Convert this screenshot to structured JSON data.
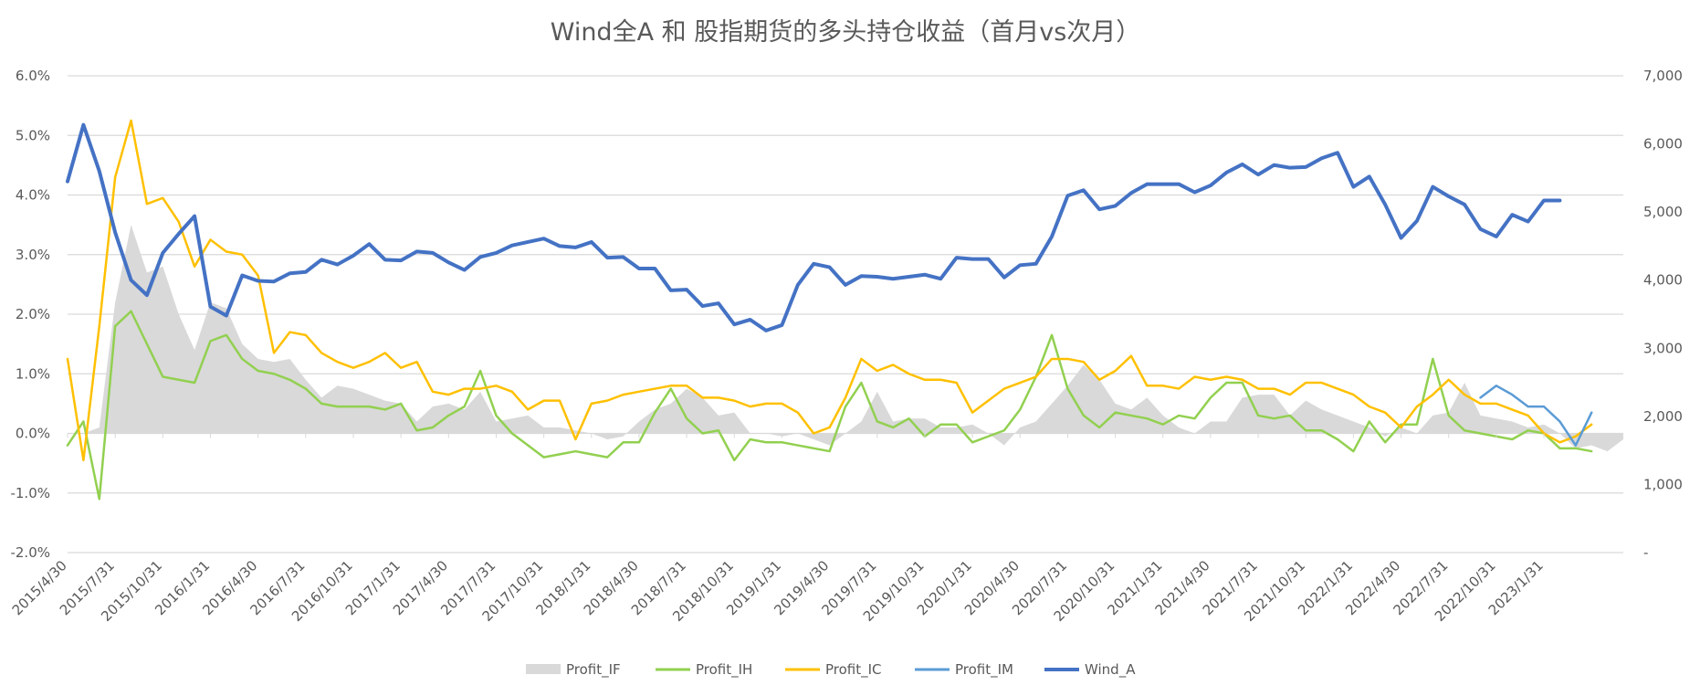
{
  "chart_data": {
    "type": "line",
    "title": "Wind全A 和 股指期货的多头持仓收益（首月vs次月）",
    "left_axis": {
      "ylim": [
        -0.02,
        0.06
      ],
      "ticks": [
        "-2.0%",
        "-1.0%",
        "0.0%",
        "1.0%",
        "2.0%",
        "3.0%",
        "4.0%",
        "5.0%",
        "6.0%"
      ]
    },
    "right_axis": {
      "ylim": [
        0,
        7000
      ],
      "ticks": [
        "-",
        "1,000",
        "2,000",
        "3,000",
        "4,000",
        "5,000",
        "6,000",
        "7,000"
      ]
    },
    "x_tick_labels": [
      "2015/4/30",
      "2015/7/31",
      "2015/10/31",
      "2016/1/31",
      "2016/4/30",
      "2016/7/31",
      "2016/10/31",
      "2017/1/31",
      "2017/4/30",
      "2017/7/31",
      "2017/10/31",
      "2018/1/31",
      "2018/4/30",
      "2018/7/31",
      "2018/10/31",
      "2019/1/31",
      "2019/4/30",
      "2019/7/31",
      "2019/10/31",
      "2020/1/31",
      "2020/4/30",
      "2020/7/31",
      "2020/10/31",
      "2021/1/31",
      "2021/4/30",
      "2021/7/31",
      "2021/10/31",
      "2022/1/31",
      "2022/4/30",
      "2022/7/31",
      "2022/10/31",
      "2023/1/31"
    ],
    "grid": true,
    "legend_position": "bottom",
    "series": [
      {
        "name": "Profit_IF",
        "type": "area",
        "axis": "left",
        "color": "#d9d9d9",
        "values": [
          0.0,
          0.0,
          0.001,
          0.022,
          0.035,
          0.027,
          0.028,
          0.02,
          0.014,
          0.022,
          0.021,
          0.015,
          0.0125,
          0.012,
          0.0125,
          0.009,
          0.006,
          0.008,
          0.0075,
          0.0065,
          0.0055,
          0.005,
          0.002,
          0.0045,
          0.005,
          0.004,
          0.007,
          0.002,
          0.0025,
          0.003,
          0.001,
          0.001,
          0.0005,
          0.0,
          -0.001,
          -0.0005,
          0.002,
          0.004,
          0.005,
          0.0075,
          0.006,
          0.003,
          0.0035,
          0.0,
          0.0,
          -0.0005,
          0.0,
          -0.001,
          -0.002,
          0.0,
          0.002,
          0.007,
          0.002,
          0.0025,
          0.0025,
          0.001,
          0.001,
          0.0015,
          0.0,
          -0.002,
          0.001,
          0.002,
          0.005,
          0.008,
          0.0115,
          0.009,
          0.005,
          0.004,
          0.006,
          0.003,
          0.001,
          0.0,
          0.002,
          0.002,
          0.006,
          0.0065,
          0.0065,
          0.003,
          0.0055,
          0.004,
          0.003,
          0.002,
          0.001,
          -0.0005,
          0.001,
          0.0,
          0.003,
          0.0035,
          0.0085,
          0.003,
          0.0025,
          0.002,
          0.001,
          0.0015,
          0.0,
          -0.0025,
          -0.002,
          -0.003,
          -0.001
        ]
      },
      {
        "name": "Profit_IH",
        "type": "line",
        "axis": "left",
        "color": "#92d050",
        "values": [
          -0.002,
          0.002,
          -0.011,
          0.018,
          0.0205,
          0.015,
          0.0095,
          0.009,
          0.0085,
          0.0155,
          0.0165,
          0.0125,
          0.0105,
          0.01,
          0.009,
          0.0075,
          0.005,
          0.0045,
          0.0045,
          0.0045,
          0.004,
          0.005,
          0.0005,
          0.001,
          0.003,
          0.0045,
          0.0105,
          0.003,
          0.0,
          -0.002,
          -0.004,
          -0.0035,
          -0.003,
          -0.0035,
          -0.004,
          -0.0015,
          -0.0015,
          0.0035,
          0.0075,
          0.0025,
          0.0,
          0.0005,
          -0.0045,
          -0.001,
          -0.0015,
          -0.0015,
          -0.002,
          -0.0025,
          -0.003,
          0.0045,
          0.0085,
          0.002,
          0.001,
          0.0025,
          -0.0005,
          0.0015,
          0.0015,
          -0.0015,
          -0.0005,
          0.0005,
          0.004,
          0.0095,
          0.0165,
          0.0075,
          0.003,
          0.001,
          0.0035,
          0.003,
          0.0025,
          0.0015,
          0.003,
          0.0025,
          0.006,
          0.0085,
          0.0085,
          0.003,
          0.0025,
          0.003,
          0.0005,
          0.0005,
          -0.001,
          -0.003,
          0.002,
          -0.0015,
          0.0015,
          0.0015,
          0.0125,
          0.003,
          0.0005,
          0.0,
          -0.0005,
          -0.001,
          0.0005,
          0.0,
          -0.0025,
          -0.0025,
          -0.003
        ]
      },
      {
        "name": "Profit_IC",
        "type": "line",
        "axis": "left",
        "color": "#ffc000",
        "values": [
          0.0125,
          -0.0045,
          0.018,
          0.043,
          0.0525,
          0.0385,
          0.0395,
          0.0355,
          0.028,
          0.0325,
          0.0305,
          0.03,
          0.0265,
          0.0135,
          0.017,
          0.0165,
          0.0135,
          0.012,
          0.011,
          0.012,
          0.0135,
          0.011,
          0.012,
          0.007,
          0.0065,
          0.0075,
          0.0075,
          0.008,
          0.007,
          0.004,
          0.0055,
          0.0055,
          -0.001,
          0.005,
          0.0055,
          0.0065,
          0.007,
          0.0075,
          0.008,
          0.008,
          0.006,
          0.006,
          0.0055,
          0.0045,
          0.005,
          0.005,
          0.0035,
          0.0,
          0.001,
          0.006,
          0.0125,
          0.0105,
          0.0115,
          0.01,
          0.009,
          0.009,
          0.0085,
          0.0035,
          0.0055,
          0.0075,
          0.0085,
          0.0095,
          0.0125,
          0.0125,
          0.012,
          0.009,
          0.0105,
          0.013,
          0.008,
          0.008,
          0.0075,
          0.0095,
          0.009,
          0.0095,
          0.009,
          0.0075,
          0.0075,
          0.0065,
          0.0085,
          0.0085,
          0.0075,
          0.0065,
          0.0045,
          0.0035,
          0.001,
          0.0045,
          0.0065,
          0.009,
          0.0065,
          0.005,
          0.005,
          0.004,
          0.003,
          0.0,
          -0.0015,
          -0.0005,
          0.0015
        ]
      },
      {
        "name": "Profit_IM",
        "type": "line",
        "axis": "left",
        "color": "#5b9bd5",
        "values": [
          null,
          null,
          null,
          null,
          null,
          null,
          null,
          null,
          null,
          null,
          null,
          null,
          null,
          null,
          null,
          null,
          null,
          null,
          null,
          null,
          null,
          null,
          null,
          null,
          null,
          null,
          null,
          null,
          null,
          null,
          null,
          null,
          null,
          null,
          null,
          null,
          null,
          null,
          null,
          null,
          null,
          null,
          null,
          null,
          null,
          null,
          null,
          null,
          null,
          null,
          null,
          null,
          null,
          null,
          null,
          null,
          null,
          null,
          null,
          null,
          null,
          null,
          null,
          null,
          null,
          null,
          null,
          null,
          null,
          null,
          null,
          null,
          null,
          null,
          null,
          null,
          null,
          null,
          null,
          null,
          null,
          null,
          null,
          null,
          null,
          null,
          null,
          null,
          null,
          0.006,
          0.008,
          0.0065,
          0.0045,
          0.0045,
          0.002,
          -0.002,
          0.0035
        ]
      },
      {
        "name": "Wind_A",
        "type": "line",
        "axis": "right",
        "color": "#4472c4",
        "values": [
          5450,
          6280,
          5600,
          4700,
          4000,
          3780,
          4400,
          4680,
          4940,
          3610,
          3480,
          4070,
          3990,
          3980,
          4100,
          4120,
          4300,
          4230,
          4360,
          4530,
          4300,
          4290,
          4420,
          4400,
          4260,
          4150,
          4340,
          4400,
          4510,
          4560,
          4610,
          4500,
          4480,
          4560,
          4330,
          4340,
          4170,
          4170,
          3850,
          3860,
          3620,
          3660,
          3350,
          3420,
          3260,
          3340,
          3930,
          4240,
          4190,
          3930,
          4060,
          4050,
          4020,
          4050,
          4080,
          4020,
          4330,
          4310,
          4310,
          4040,
          4220,
          4240,
          4640,
          5240,
          5320,
          5040,
          5090,
          5280,
          5410,
          5410,
          5410,
          5290,
          5390,
          5580,
          5700,
          5550,
          5690,
          5650,
          5660,
          5790,
          5870,
          5370,
          5520,
          5110,
          4620,
          4870,
          5370,
          5230,
          5110,
          4750,
          4640,
          4960,
          4860,
          5170,
          5170
        ]
      }
    ]
  }
}
